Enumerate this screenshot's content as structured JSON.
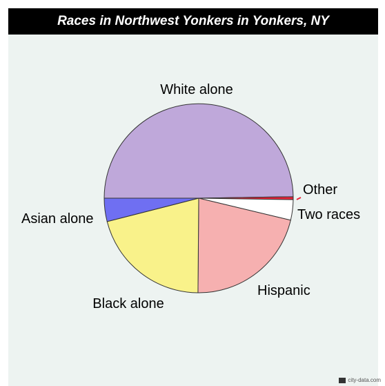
{
  "header": {
    "title": "Races in Northwest Yonkers in Yonkers, NY"
  },
  "watermark": {
    "text": "city-data.com"
  },
  "chart_data": {
    "type": "pie",
    "title": "Races in Northwest Yonkers in Yonkers, NY",
    "start_angle_deg": 180,
    "direction": "clockwise",
    "slices": [
      {
        "label": "White alone",
        "value": 50.0,
        "color": "#bfa8da"
      },
      {
        "label": "Other",
        "value": 0.5,
        "color": "#e8243a"
      },
      {
        "label": "Two races",
        "value": 3.5,
        "color": "#ffffff"
      },
      {
        "label": "Hispanic",
        "value": 21.5,
        "color": "#f6b0b0"
      },
      {
        "label": "Black alone",
        "value": 21.0,
        "color": "#f9f28a"
      },
      {
        "label": "Asian alone",
        "value": 4.0,
        "color": "#6f6ff2"
      }
    ]
  }
}
